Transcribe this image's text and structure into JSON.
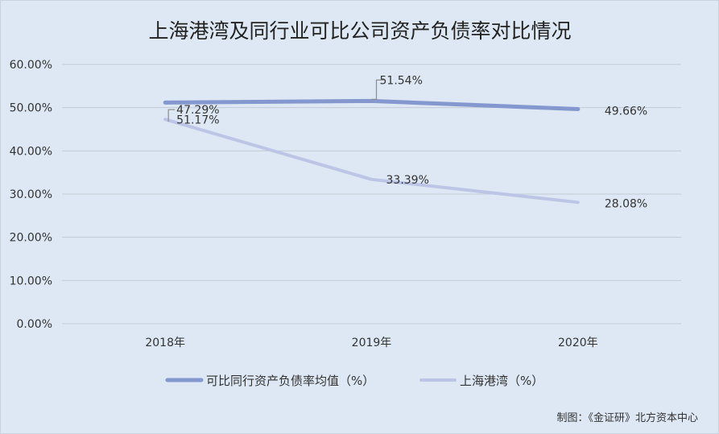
{
  "chart_data": {
    "type": "line",
    "title": "上海港湾及同行业可比公司资产负债率对比情况",
    "categories": [
      "2018年",
      "2019年",
      "2020年"
    ],
    "ylim": [
      0,
      60
    ],
    "yticks": [
      "0.00%",
      "10.00%",
      "20.00%",
      "30.00%",
      "40.00%",
      "50.00%",
      "60.00%"
    ],
    "grid": true,
    "legend_position": "bottom",
    "series": [
      {
        "name": "可比同行资产负债率均值（%）",
        "values": [
          51.17,
          51.54,
          49.66
        ],
        "labels": [
          "51.17%",
          "51.54%",
          "49.66%"
        ],
        "color": "#8497cf"
      },
      {
        "name": "上海港湾（%）",
        "values": [
          47.29,
          33.39,
          28.08
        ],
        "labels": [
          "47.29%",
          "33.39%",
          "28.08%"
        ],
        "color": "#bcc5e6"
      }
    ],
    "source_note": "制图：《金证研》北方资本中心"
  }
}
